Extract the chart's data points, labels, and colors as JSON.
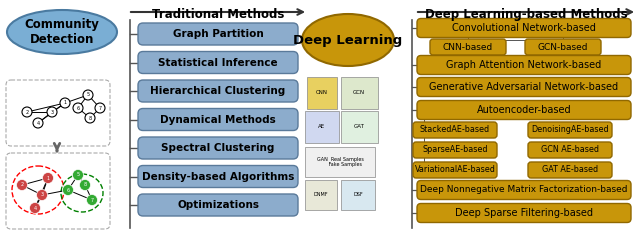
{
  "bg": "#ffffff",
  "community_ellipse_color": "#7aaed4",
  "community_ellipse_edge": "#4a7aa0",
  "community_label": "Community\nDetection",
  "section_trad": "Traditional Methods",
  "section_deep": "Deep Learning-based Methods",
  "deep_learning_label": "Deep Learning",
  "deep_circle_color": "#c8960a",
  "deep_circle_edge": "#906800",
  "trad_box_color": "#8caccc",
  "trad_box_edge": "#5a7a9a",
  "trad_boxes": [
    "Graph Partition",
    "Statistical Inference",
    "Hierarchical Clustering",
    "Dynamical Methods",
    "Spectral Clustering",
    "Density-based Algorithms",
    "Optimizations"
  ],
  "deep_box_color": "#c8960a",
  "deep_box_edge": "#906800",
  "deep_main_boxes": [
    [
      490,
      28,
      "Convolutional Network-based"
    ],
    [
      490,
      65,
      "Graph Attention Network-based"
    ],
    [
      490,
      87,
      "Generative Adversarial Network-based"
    ],
    [
      490,
      110,
      "Autoencoder-based"
    ],
    [
      490,
      185,
      "Deep Nonnegative Matrix Factorization-based"
    ],
    [
      490,
      210,
      "Deep Sparse Filtering-based"
    ]
  ],
  "deep_sub_cnn": [
    [
      466,
      47,
      "CNN-based"
    ],
    [
      558,
      47,
      "GCN-based"
    ]
  ],
  "deep_sub_ae_left": [
    [
      455,
      132,
      "StackedAE-based"
    ],
    [
      455,
      150,
      "SparseAE-based"
    ],
    [
      455,
      168,
      "VariationalAE-based"
    ]
  ],
  "deep_sub_ae_right": [
    [
      567,
      132,
      "DenoisingAE-based"
    ],
    [
      567,
      150,
      "GCN AE-based"
    ],
    [
      567,
      168,
      "GAT AE-based"
    ]
  ],
  "line_color": "#555555",
  "arrow_color": "#555555"
}
